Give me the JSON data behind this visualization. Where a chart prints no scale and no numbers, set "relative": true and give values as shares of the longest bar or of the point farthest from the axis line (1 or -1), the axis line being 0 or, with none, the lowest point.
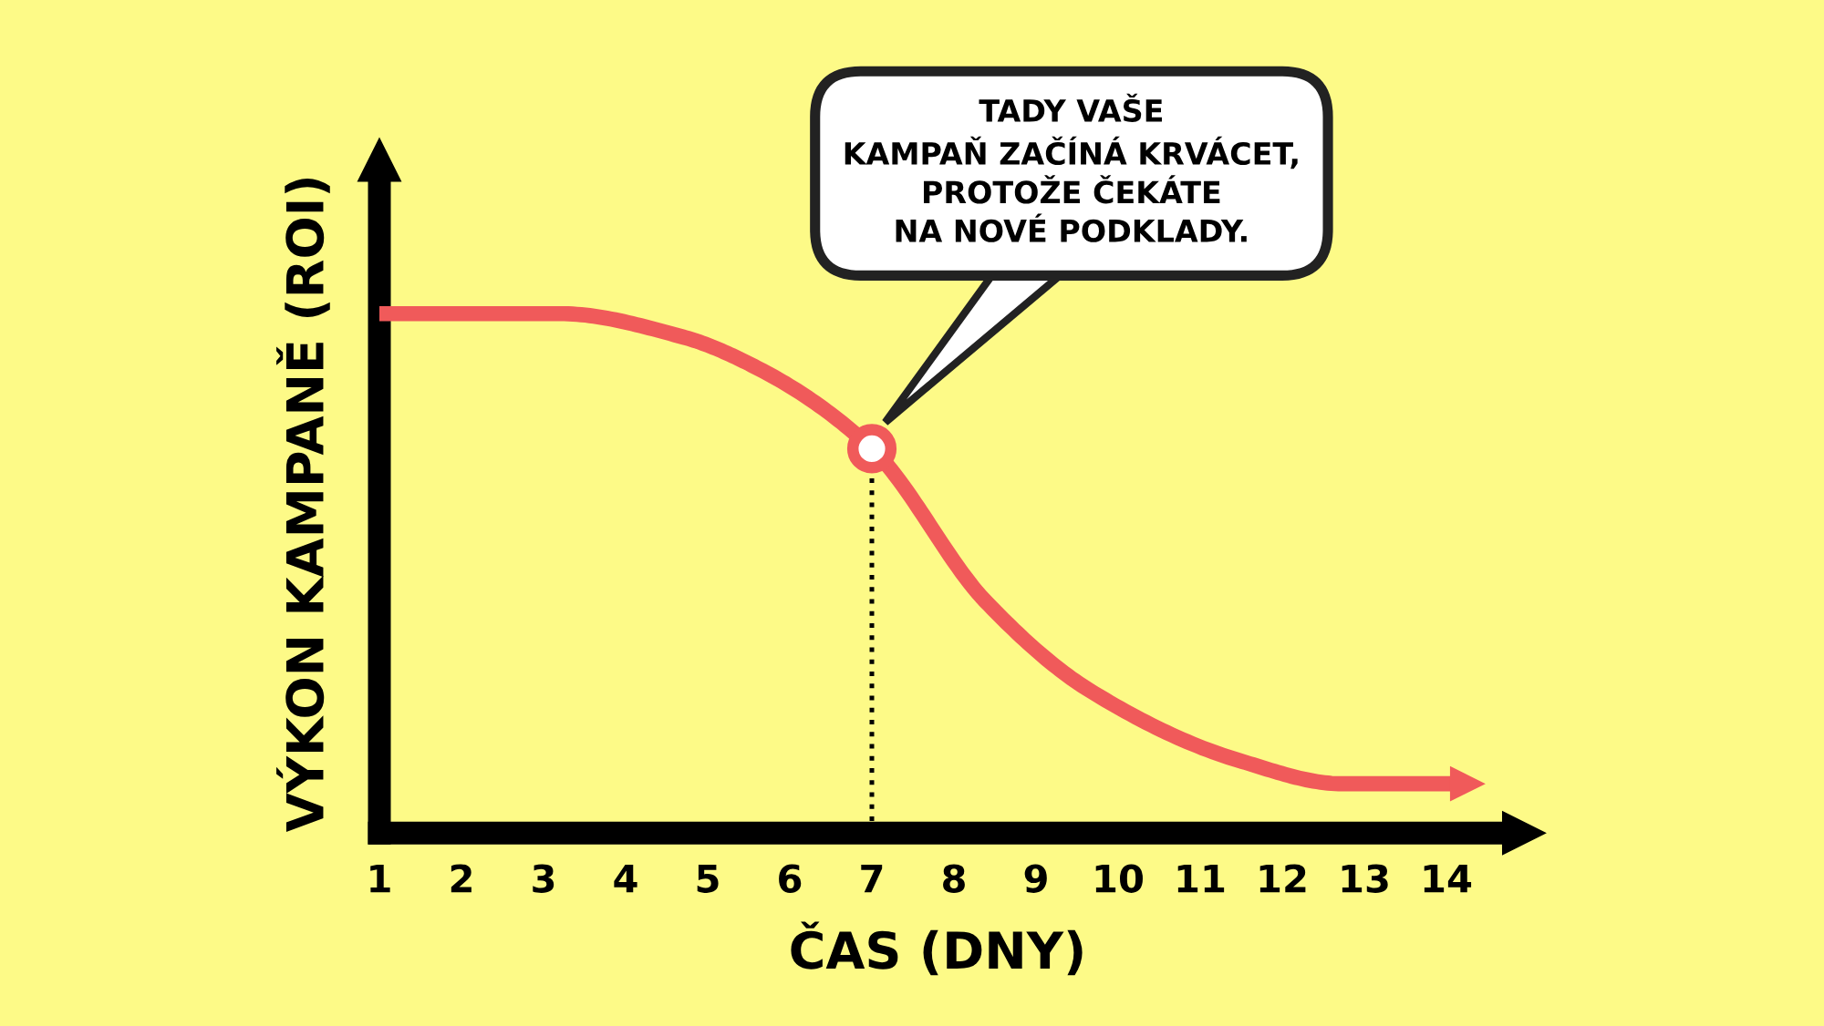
{
  "chart_data": {
    "type": "line",
    "relative": true,
    "xlabel": "ČAS (DNY)",
    "ylabel": "VÝKON KAMPANĚ (ROI)",
    "x": [
      1,
      3.2,
      4.7,
      5.67,
      7,
      8.38,
      9.65,
      11.47,
      12.73,
      14.26
    ],
    "series": [
      {
        "color": "#f05a5a",
        "values": [
          1,
          1,
          0.955,
          0.89,
          0.74,
          0.447,
          0.275,
          0.14,
          0.095,
          0.095
        ]
      },
      {
        "type": "scatter",
        "marker": "circle",
        "color": "#f05a5a",
        "x": [
          7
        ],
        "values": [
          0.74
        ]
      }
    ],
    "xlim": [
      1,
      14.6
    ],
    "xticks": [
      1,
      2,
      3,
      4,
      5,
      6,
      7,
      8,
      9,
      10,
      11,
      12,
      13,
      14
    ],
    "annotations": [
      "TADY VAŠE\nKAMPAŇ ZAČÍNÁ KRVÁCET,\nPROTOŽE ČEKÁTE\nNA NOVÉ PODKLADY."
    ],
    "ref_lines": [
      {
        "axis": "x",
        "value": 7,
        "line_style": "dotted",
        "color": "#000000"
      }
    ],
    "grid": false,
    "legend": false
  }
}
